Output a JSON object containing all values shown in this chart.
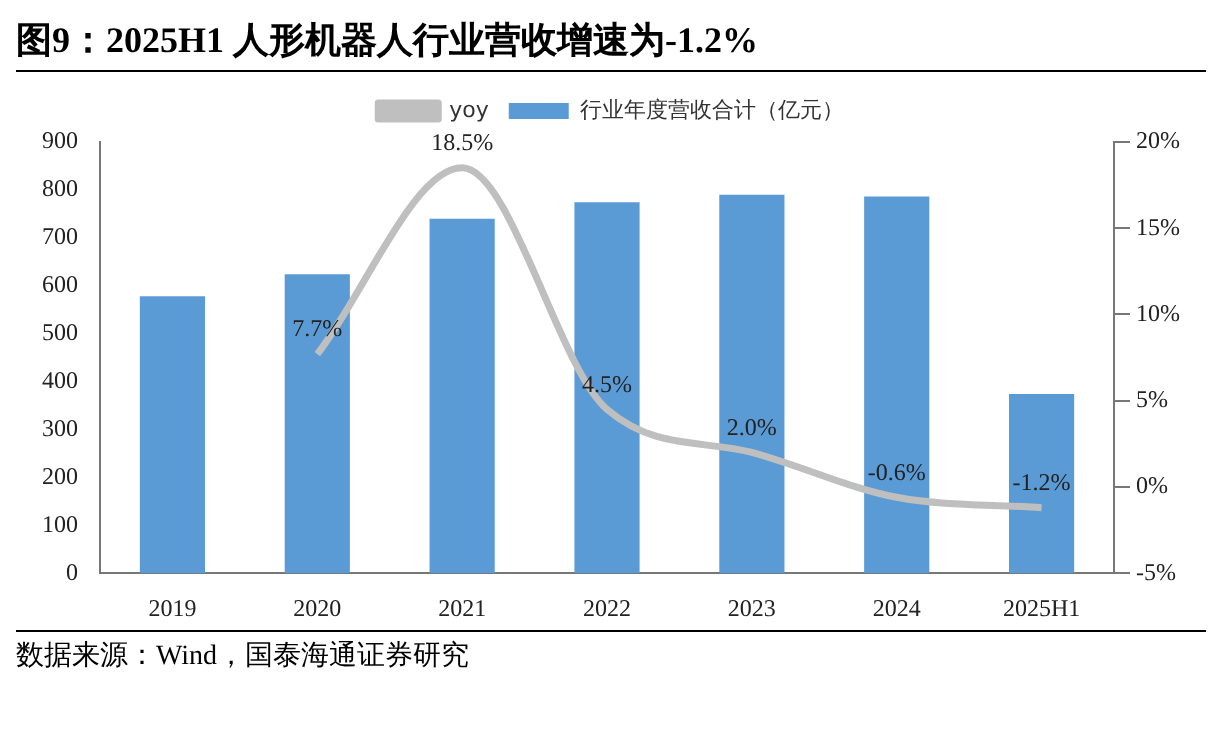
{
  "chart_data": {
    "type": "bar",
    "title": "图9：2025H1 人形机器人行业营收增速为-1.2%",
    "categories": [
      "2019",
      "2020",
      "2021",
      "2022",
      "2023",
      "2024",
      "2025H1"
    ],
    "series": [
      {
        "name": "行业年度营收合计（亿元）",
        "color": "#5b9bd5",
        "values": [
          578,
          624,
          740,
          774,
          790,
          786,
          374
        ]
      },
      {
        "name": "yoy",
        "type": "line",
        "axis": "y2",
        "color": "#bfbfbf",
        "values": [
          null,
          7.7,
          18.5,
          4.5,
          2.0,
          -0.6,
          -1.2
        ],
        "value_labels": [
          null,
          "7.7%",
          "18.5%",
          "4.5%",
          "2.0%",
          "-0.6%",
          "-1.2%"
        ]
      }
    ],
    "ylim": [
      0,
      900
    ],
    "yticks": [
      0,
      100,
      200,
      300,
      400,
      500,
      600,
      700,
      800,
      900
    ],
    "y2lim": [
      -5,
      20
    ],
    "y2ticks": [
      {
        "value": -5,
        "label": "-5%"
      },
      {
        "value": 0,
        "label": "0%"
      },
      {
        "value": 5,
        "label": "5%"
      },
      {
        "value": 10,
        "label": "10%"
      },
      {
        "value": 15,
        "label": "15%"
      },
      {
        "value": 20,
        "label": "20%"
      }
    ],
    "legend": "top",
    "grid": false,
    "marker": "none",
    "annotations": [
      "数据来源：Wind，国泰海通证券研究"
    ]
  }
}
